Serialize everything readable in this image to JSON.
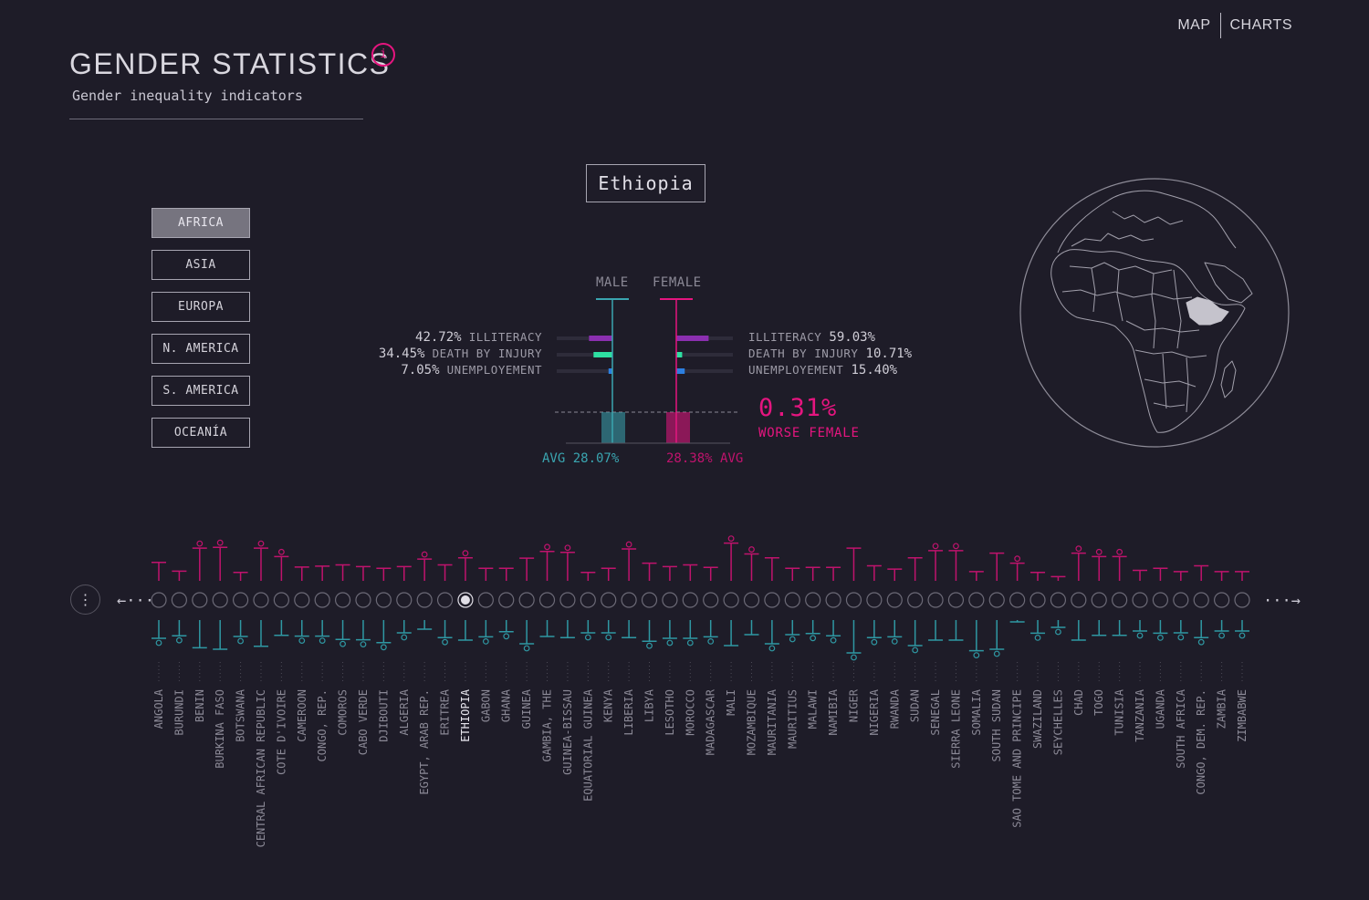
{
  "nav": {
    "map": "MAP",
    "charts": "CHARTS"
  },
  "header": {
    "title": "GENDER STATISTICS",
    "subtitle": "Gender inequality indicators",
    "info_glyph": "i"
  },
  "regions": [
    "AFRICA",
    "ASIA",
    "EUROPA",
    "N. AMERICA",
    "S. AMERICA",
    "OCEANÍA"
  ],
  "active_region": "AFRICA",
  "selected_country": "Ethiopia",
  "comparison": {
    "male_label": "MALE",
    "female_label": "FEMALE",
    "male": [
      {
        "value": "42.72%",
        "label": "ILLITERACY",
        "pct": 42.72,
        "color": "#8b2fb0"
      },
      {
        "value": "34.45%",
        "label": "DEATH BY INJURY",
        "pct": 34.45,
        "color": "#2ee0a2"
      },
      {
        "value": "7.05%",
        "label": "UNEMPLOYEMENT",
        "pct": 7.05,
        "color": "#2c7fe0"
      }
    ],
    "female": [
      {
        "value": "59.03%",
        "label": "ILLITERACY",
        "pct": 59.03,
        "color": "#8b2fb0"
      },
      {
        "value": "10.71%",
        "label": "DEATH BY INJURY",
        "pct": 10.71,
        "color": "#2ee0a2"
      },
      {
        "value": "15.40%",
        "label": "UNEMPLOYEMENT",
        "pct": 15.4,
        "color": "#2c7fe0"
      }
    ],
    "avg_male_text": "AVG 28.07%",
    "avg_female_text": "28.38% AVG",
    "avg_male": 28.07,
    "avg_female": 28.38,
    "difference": "0.31%",
    "difference_label": "WORSE FEMALE"
  },
  "colors": {
    "male": "#3aa5b0",
    "female": "#e5157f",
    "background": "#1e1c28"
  },
  "icons": {
    "info": "info-icon",
    "menu": "vertical-dots-icon",
    "prev": "arrow-left-icon",
    "next": "arrow-right-icon",
    "globe": "globe-map-icon"
  },
  "nav_arrows": {
    "prev": "←···",
    "next": "···→",
    "menu": "⋮"
  },
  "countries": [
    {
      "name": "ANGOLA",
      "f": 0.44,
      "fw": false,
      "m": 0.5,
      "mw": true
    },
    {
      "name": "BURUNDI",
      "f": 0.23,
      "fw": false,
      "m": 0.43,
      "mw": true
    },
    {
      "name": "BENIN",
      "f": 0.78,
      "fw": true,
      "m": 0.76,
      "mw": false
    },
    {
      "name": "BURKINA FASO",
      "f": 0.8,
      "fw": true,
      "m": 0.8,
      "mw": false
    },
    {
      "name": "BOTSWANA",
      "f": 0.2,
      "fw": false,
      "m": 0.45,
      "mw": true
    },
    {
      "name": "CENTRAL AFRICAN REPUBLIC",
      "f": 0.78,
      "fw": true,
      "m": 0.72,
      "mw": false
    },
    {
      "name": "COTE D'IVOIRE",
      "f": 0.58,
      "fw": true,
      "m": 0.42,
      "mw": false
    },
    {
      "name": "CAMEROON",
      "f": 0.33,
      "fw": false,
      "m": 0.44,
      "mw": true
    },
    {
      "name": "CONGO, REP.",
      "f": 0.35,
      "fw": false,
      "m": 0.44,
      "mw": true
    },
    {
      "name": "COMOROS",
      "f": 0.38,
      "fw": false,
      "m": 0.53,
      "mw": true
    },
    {
      "name": "CABO VERDE",
      "f": 0.34,
      "fw": false,
      "m": 0.54,
      "mw": true
    },
    {
      "name": "DJIBOUTI",
      "f": 0.3,
      "fw": false,
      "m": 0.62,
      "mw": true
    },
    {
      "name": "ALGERIA",
      "f": 0.34,
      "fw": false,
      "m": 0.35,
      "mw": true
    },
    {
      "name": "EGYPT, ARAB REP.",
      "f": 0.52,
      "fw": true,
      "m": 0.25,
      "mw": false
    },
    {
      "name": "ERITREA",
      "f": 0.38,
      "fw": false,
      "m": 0.48,
      "mw": true
    },
    {
      "name": "ETHIOPIA",
      "f": 0.55,
      "fw": true,
      "m": 0.55,
      "mw": false,
      "selected": true
    },
    {
      "name": "GABON",
      "f": 0.3,
      "fw": false,
      "m": 0.46,
      "mw": true
    },
    {
      "name": "GHANA",
      "f": 0.3,
      "fw": false,
      "m": 0.32,
      "mw": true
    },
    {
      "name": "GUINEA",
      "f": 0.54,
      "fw": false,
      "m": 0.65,
      "mw": true
    },
    {
      "name": "GAMBIA, THE",
      "f": 0.7,
      "fw": true,
      "m": 0.45,
      "mw": false
    },
    {
      "name": "GUINEA-BISSAU",
      "f": 0.68,
      "fw": true,
      "m": 0.48,
      "mw": false
    },
    {
      "name": "EQUATORIAL GUINEA",
      "f": 0.2,
      "fw": false,
      "m": 0.35,
      "mw": true
    },
    {
      "name": "KENYA",
      "f": 0.3,
      "fw": false,
      "m": 0.35,
      "mw": true
    },
    {
      "name": "LIBERIA",
      "f": 0.76,
      "fw": true,
      "m": 0.48,
      "mw": false
    },
    {
      "name": "LIBYA",
      "f": 0.42,
      "fw": false,
      "m": 0.58,
      "mw": true
    },
    {
      "name": "LESOTHO",
      "f": 0.34,
      "fw": false,
      "m": 0.5,
      "mw": true
    },
    {
      "name": "MOROCCO",
      "f": 0.38,
      "fw": false,
      "m": 0.5,
      "mw": true
    },
    {
      "name": "MADAGASCAR",
      "f": 0.32,
      "fw": false,
      "m": 0.46,
      "mw": true
    },
    {
      "name": "MALI",
      "f": 0.9,
      "fw": true,
      "m": 0.7,
      "mw": false
    },
    {
      "name": "MOZAMBIQUE",
      "f": 0.64,
      "fw": true,
      "m": 0.4,
      "mw": false
    },
    {
      "name": "MAURITANIA",
      "f": 0.55,
      "fw": false,
      "m": 0.65,
      "mw": true
    },
    {
      "name": "MAURITIUS",
      "f": 0.3,
      "fw": false,
      "m": 0.4,
      "mw": true
    },
    {
      "name": "MALAWI",
      "f": 0.32,
      "fw": false,
      "m": 0.37,
      "mw": true
    },
    {
      "name": "NAMIBIA",
      "f": 0.32,
      "fw": false,
      "m": 0.43,
      "mw": true
    },
    {
      "name": "NIGER",
      "f": 0.78,
      "fw": false,
      "m": 0.9,
      "mw": true
    },
    {
      "name": "NIGERIA",
      "f": 0.36,
      "fw": false,
      "m": 0.48,
      "mw": true
    },
    {
      "name": "RWANDA",
      "f": 0.28,
      "fw": false,
      "m": 0.46,
      "mw": true
    },
    {
      "name": "SUDAN",
      "f": 0.55,
      "fw": false,
      "m": 0.7,
      "mw": true
    },
    {
      "name": "SENEGAL",
      "f": 0.72,
      "fw": true,
      "m": 0.55,
      "mw": false
    },
    {
      "name": "SIERRA LEONE",
      "f": 0.72,
      "fw": true,
      "m": 0.55,
      "mw": false
    },
    {
      "name": "SOMALIA",
      "f": 0.22,
      "fw": false,
      "m": 0.84,
      "mw": true
    },
    {
      "name": "SOUTH SUDAN",
      "f": 0.66,
      "fw": false,
      "m": 0.8,
      "mw": true
    },
    {
      "name": "SAO TOME AND PRINCIPE",
      "f": 0.42,
      "fw": true,
      "m": 0.05,
      "mw": false
    },
    {
      "name": "SWAZILAND",
      "f": 0.2,
      "fw": false,
      "m": 0.36,
      "mw": true
    },
    {
      "name": "SEYCHELLES",
      "f": 0.1,
      "fw": false,
      "m": 0.2,
      "mw": true
    },
    {
      "name": "CHAD",
      "f": 0.66,
      "fw": true,
      "m": 0.55,
      "mw": false
    },
    {
      "name": "TOGO",
      "f": 0.58,
      "fw": true,
      "m": 0.42,
      "mw": false
    },
    {
      "name": "TUNISIA",
      "f": 0.58,
      "fw": true,
      "m": 0.42,
      "mw": false
    },
    {
      "name": "TANZANIA",
      "f": 0.25,
      "fw": false,
      "m": 0.3,
      "mw": true
    },
    {
      "name": "UGANDA",
      "f": 0.3,
      "fw": false,
      "m": 0.36,
      "mw": true
    },
    {
      "name": "SOUTH AFRICA",
      "f": 0.22,
      "fw": false,
      "m": 0.35,
      "mw": true
    },
    {
      "name": "CONGO, DEM. REP.",
      "f": 0.36,
      "fw": false,
      "m": 0.48,
      "mw": true
    },
    {
      "name": "ZAMBIA",
      "f": 0.22,
      "fw": false,
      "m": 0.3,
      "mw": true
    },
    {
      "name": "ZIMBABWE",
      "f": 0.22,
      "fw": false,
      "m": 0.3,
      "mw": true
    }
  ]
}
